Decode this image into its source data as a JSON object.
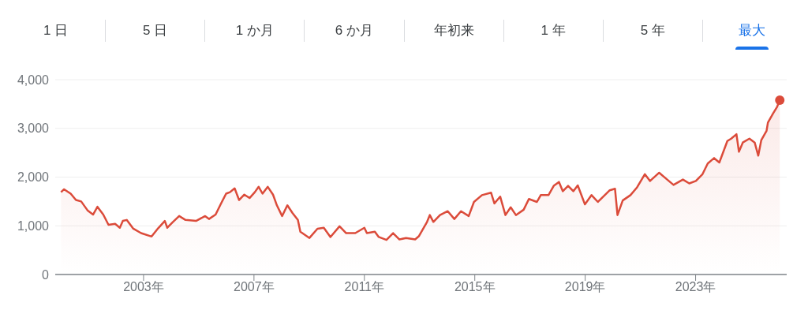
{
  "chart_data": {
    "type": "area",
    "annotations": [
      "1 日",
      "5 日",
      "1 か月",
      "6 か月",
      "年初来",
      "1 年",
      "5 年",
      "最大"
    ],
    "x": [
      2000.01,
      2000.12,
      2000.36,
      2000.55,
      2000.74,
      2000.98,
      2001.17,
      2001.33,
      2001.54,
      2001.73,
      2001.97,
      2002.14,
      2002.25,
      2002.39,
      2002.63,
      2002.91,
      2003.29,
      2003.53,
      2003.77,
      2003.86,
      2004.05,
      2004.29,
      2004.52,
      2004.9,
      2005.23,
      2005.37,
      2005.61,
      2005.8,
      2005.99,
      2006.13,
      2006.3,
      2006.46,
      2006.65,
      2006.84,
      2007.03,
      2007.17,
      2007.31,
      2007.5,
      2007.69,
      2007.83,
      2008.02,
      2008.21,
      2008.4,
      2008.59,
      2008.68,
      2009.01,
      2009.3,
      2009.53,
      2009.77,
      2010.1,
      2010.34,
      2010.67,
      2011.0,
      2011.09,
      2011.38,
      2011.52,
      2011.8,
      2012.04,
      2012.27,
      2012.51,
      2012.84,
      2012.98,
      2013.27,
      2013.37,
      2013.5,
      2013.74,
      2014.02,
      2014.26,
      2014.5,
      2014.78,
      2014.97,
      2015.26,
      2015.59,
      2015.71,
      2015.92,
      2016.11,
      2016.3,
      2016.49,
      2016.77,
      2016.96,
      2017.25,
      2017.39,
      2017.67,
      2017.86,
      2018.05,
      2018.19,
      2018.38,
      2018.57,
      2018.73,
      2018.99,
      2019.23,
      2019.46,
      2019.6,
      2019.89,
      2020.08,
      2020.17,
      2020.36,
      2020.64,
      2020.88,
      2021.16,
      2021.35,
      2021.68,
      2021.97,
      2022.2,
      2022.54,
      2022.77,
      2023.01,
      2023.25,
      2023.44,
      2023.67,
      2023.86,
      2024.15,
      2024.29,
      2024.48,
      2024.57,
      2024.71,
      2024.95,
      2025.14,
      2025.27,
      2025.38,
      2025.57,
      2025.62,
      2025.81,
      2025.95,
      2026.05
    ],
    "series": [
      {
        "color": "#db4b3a",
        "values": [
          1690,
          1750,
          1660,
          1530,
          1500,
          1310,
          1230,
          1390,
          1230,
          1020,
          1040,
          960,
          1100,
          1120,
          940,
          850,
          780,
          950,
          1100,
          960,
          1070,
          1200,
          1120,
          1100,
          1200,
          1140,
          1230,
          1450,
          1660,
          1690,
          1770,
          1530,
          1640,
          1570,
          1690,
          1800,
          1660,
          1800,
          1640,
          1420,
          1200,
          1420,
          1260,
          1120,
          880,
          750,
          940,
          960,
          770,
          990,
          850,
          850,
          960,
          850,
          880,
          770,
          710,
          850,
          720,
          750,
          720,
          790,
          1080,
          1220,
          1080,
          1220,
          1300,
          1140,
          1300,
          1200,
          1490,
          1630,
          1680,
          1460,
          1600,
          1220,
          1380,
          1220,
          1330,
          1550,
          1490,
          1630,
          1630,
          1820,
          1900,
          1710,
          1820,
          1710,
          1830,
          1440,
          1630,
          1490,
          1570,
          1730,
          1760,
          1220,
          1520,
          1630,
          1790,
          2060,
          1920,
          2090,
          1950,
          1840,
          1950,
          1870,
          1920,
          2060,
          2280,
          2390,
          2300,
          2740,
          2790,
          2880,
          2520,
          2710,
          2790,
          2710,
          2440,
          2760,
          2950,
          3120,
          3310,
          3440,
          3580
        ]
      }
    ],
    "xlim": [
      1999.8,
      2026.3
    ],
    "xticks": [
      {
        "value": 2003,
        "label": "2003年"
      },
      {
        "value": 2007,
        "label": "2007年"
      },
      {
        "value": 2011,
        "label": "2011年"
      },
      {
        "value": 2015,
        "label": "2015年"
      },
      {
        "value": 2019,
        "label": "2019年"
      },
      {
        "value": 2023,
        "label": "2023年"
      }
    ],
    "ylim": [
      0,
      4000
    ],
    "yticks": [
      0,
      {
        "value": 1000,
        "label": "1,000"
      },
      {
        "value": 2000,
        "label": "2,000"
      },
      {
        "value": 3000,
        "label": "3,000"
      },
      {
        "value": 4000,
        "label": "4,000"
      }
    ],
    "grid": "y"
  }
}
